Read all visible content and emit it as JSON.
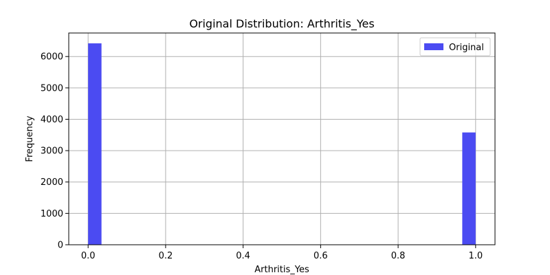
{
  "chart_data": {
    "type": "bar",
    "title": "Original Distribution: Arthritis_Yes",
    "xlabel": "Arthritis_Yes",
    "ylabel": "Frequency",
    "xlim": [
      -0.05,
      1.05
    ],
    "ylim": [
      0,
      6750
    ],
    "x_ticks": [
      0.0,
      0.2,
      0.4,
      0.6,
      0.8,
      1.0
    ],
    "x_tick_labels": [
      "0.0",
      "0.2",
      "0.4",
      "0.6",
      "0.8",
      "1.0"
    ],
    "y_ticks": [
      0,
      1000,
      2000,
      3000,
      4000,
      5000,
      6000
    ],
    "y_tick_labels": [
      "0",
      "1000",
      "2000",
      "3000",
      "4000",
      "5000",
      "6000"
    ],
    "grid": true,
    "legend_position": "top-right",
    "series": [
      {
        "name": "Original",
        "color": "#4b4bf2",
        "bins": [
          {
            "x0": 0.0,
            "x1": 0.0345,
            "value": 6420
          },
          {
            "x0": 0.9655,
            "x1": 1.0,
            "value": 3580
          }
        ]
      }
    ]
  }
}
